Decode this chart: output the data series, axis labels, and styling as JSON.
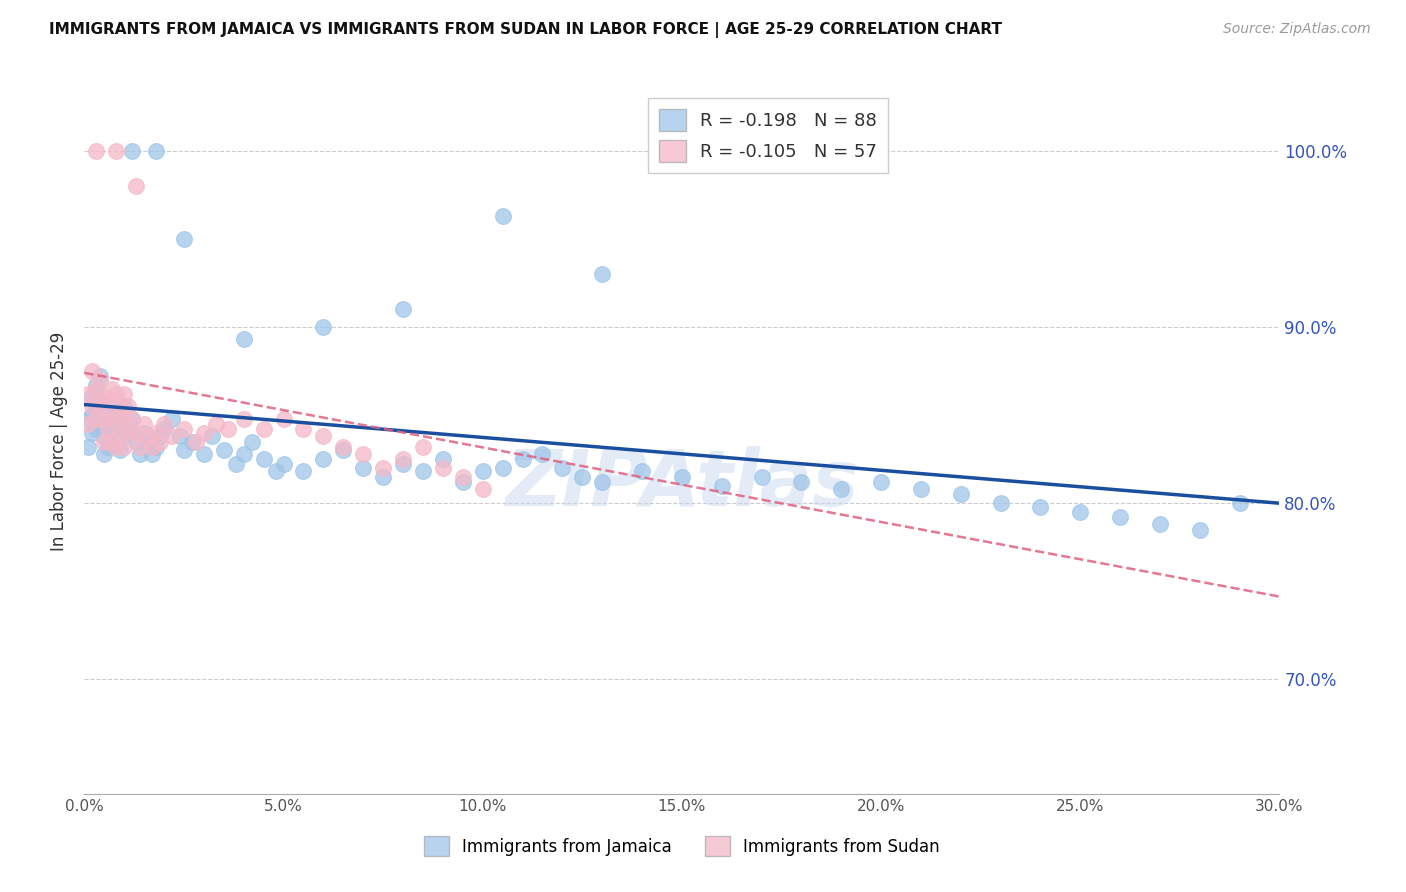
{
  "title": "IMMIGRANTS FROM JAMAICA VS IMMIGRANTS FROM SUDAN IN LABOR FORCE | AGE 25-29 CORRELATION CHART",
  "source": "Source: ZipAtlas.com",
  "ylabel": "In Labor Force | Age 25-29",
  "xlim": [
    0.0,
    0.3
  ],
  "ylim": [
    0.635,
    1.035
  ],
  "yticks": [
    0.7,
    0.8,
    0.9,
    1.0
  ],
  "xticks": [
    0.0,
    0.05,
    0.1,
    0.15,
    0.2,
    0.25,
    0.3
  ],
  "jamaica_color": "#9fc5e8",
  "sudan_color": "#f4b8c8",
  "jamaica_line_color": "#1a4fa0",
  "sudan_line_color": "#e06080",
  "legend_R_jamaica": "-0.198",
  "legend_N_jamaica": "88",
  "legend_R_sudan": "-0.105",
  "legend_N_sudan": "57",
  "watermark": "ZIPAtlas",
  "jamaica_line_x0": 0.0,
  "jamaica_line_y0": 0.856,
  "jamaica_line_x1": 0.3,
  "jamaica_line_y1": 0.8,
  "sudan_line_x0": 0.0,
  "sudan_line_y0": 0.874,
  "sudan_line_x1": 0.3,
  "sudan_line_y1": 0.747,
  "jamaica_x": [
    0.001,
    0.001,
    0.002,
    0.002,
    0.002,
    0.003,
    0.003,
    0.003,
    0.004,
    0.004,
    0.004,
    0.005,
    0.005,
    0.005,
    0.006,
    0.006,
    0.006,
    0.007,
    0.007,
    0.008,
    0.008,
    0.009,
    0.009,
    0.01,
    0.01,
    0.011,
    0.012,
    0.013,
    0.014,
    0.015,
    0.016,
    0.017,
    0.018,
    0.019,
    0.02,
    0.022,
    0.024,
    0.025,
    0.027,
    0.03,
    0.032,
    0.035,
    0.038,
    0.04,
    0.042,
    0.045,
    0.048,
    0.05,
    0.055,
    0.06,
    0.065,
    0.07,
    0.075,
    0.08,
    0.085,
    0.09,
    0.095,
    0.1,
    0.105,
    0.11,
    0.115,
    0.12,
    0.125,
    0.13,
    0.14,
    0.15,
    0.16,
    0.17,
    0.18,
    0.19,
    0.2,
    0.21,
    0.22,
    0.23,
    0.24,
    0.25,
    0.26,
    0.27,
    0.28,
    0.29,
    0.012,
    0.018,
    0.105,
    0.13,
    0.08,
    0.06,
    0.04,
    0.025
  ],
  "jamaica_y": [
    0.848,
    0.832,
    0.86,
    0.85,
    0.84,
    0.867,
    0.855,
    0.842,
    0.872,
    0.858,
    0.845,
    0.85,
    0.838,
    0.828,
    0.855,
    0.843,
    0.832,
    0.848,
    0.835,
    0.852,
    0.84,
    0.845,
    0.83,
    0.855,
    0.838,
    0.842,
    0.848,
    0.835,
    0.828,
    0.84,
    0.835,
    0.828,
    0.832,
    0.838,
    0.842,
    0.848,
    0.838,
    0.83,
    0.835,
    0.828,
    0.838,
    0.83,
    0.822,
    0.828,
    0.835,
    0.825,
    0.818,
    0.822,
    0.818,
    0.825,
    0.83,
    0.82,
    0.815,
    0.822,
    0.818,
    0.825,
    0.812,
    0.818,
    0.82,
    0.825,
    0.828,
    0.82,
    0.815,
    0.812,
    0.818,
    0.815,
    0.81,
    0.815,
    0.812,
    0.808,
    0.812,
    0.808,
    0.805,
    0.8,
    0.798,
    0.795,
    0.792,
    0.788,
    0.785,
    0.8,
    1.0,
    1.0,
    0.963,
    0.93,
    0.91,
    0.9,
    0.893,
    0.95
  ],
  "sudan_x": [
    0.001,
    0.001,
    0.002,
    0.002,
    0.003,
    0.003,
    0.004,
    0.004,
    0.005,
    0.005,
    0.005,
    0.006,
    0.006,
    0.007,
    0.007,
    0.007,
    0.008,
    0.008,
    0.008,
    0.009,
    0.009,
    0.01,
    0.01,
    0.01,
    0.011,
    0.011,
    0.012,
    0.013,
    0.014,
    0.015,
    0.016,
    0.017,
    0.018,
    0.019,
    0.02,
    0.022,
    0.025,
    0.028,
    0.03,
    0.033,
    0.036,
    0.04,
    0.045,
    0.05,
    0.055,
    0.06,
    0.065,
    0.07,
    0.075,
    0.08,
    0.085,
    0.09,
    0.095,
    0.1,
    0.003,
    0.008,
    0.013
  ],
  "sudan_y": [
    0.862,
    0.845,
    0.875,
    0.855,
    0.865,
    0.848,
    0.87,
    0.855,
    0.86,
    0.848,
    0.835,
    0.858,
    0.842,
    0.865,
    0.85,
    0.835,
    0.862,
    0.848,
    0.832,
    0.855,
    0.84,
    0.862,
    0.848,
    0.832,
    0.855,
    0.84,
    0.848,
    0.84,
    0.832,
    0.845,
    0.838,
    0.832,
    0.84,
    0.835,
    0.845,
    0.838,
    0.842,
    0.835,
    0.84,
    0.845,
    0.842,
    0.848,
    0.842,
    0.848,
    0.842,
    0.838,
    0.832,
    0.828,
    0.82,
    0.825,
    0.832,
    0.82,
    0.815,
    0.808,
    1.0,
    1.0,
    0.98
  ]
}
